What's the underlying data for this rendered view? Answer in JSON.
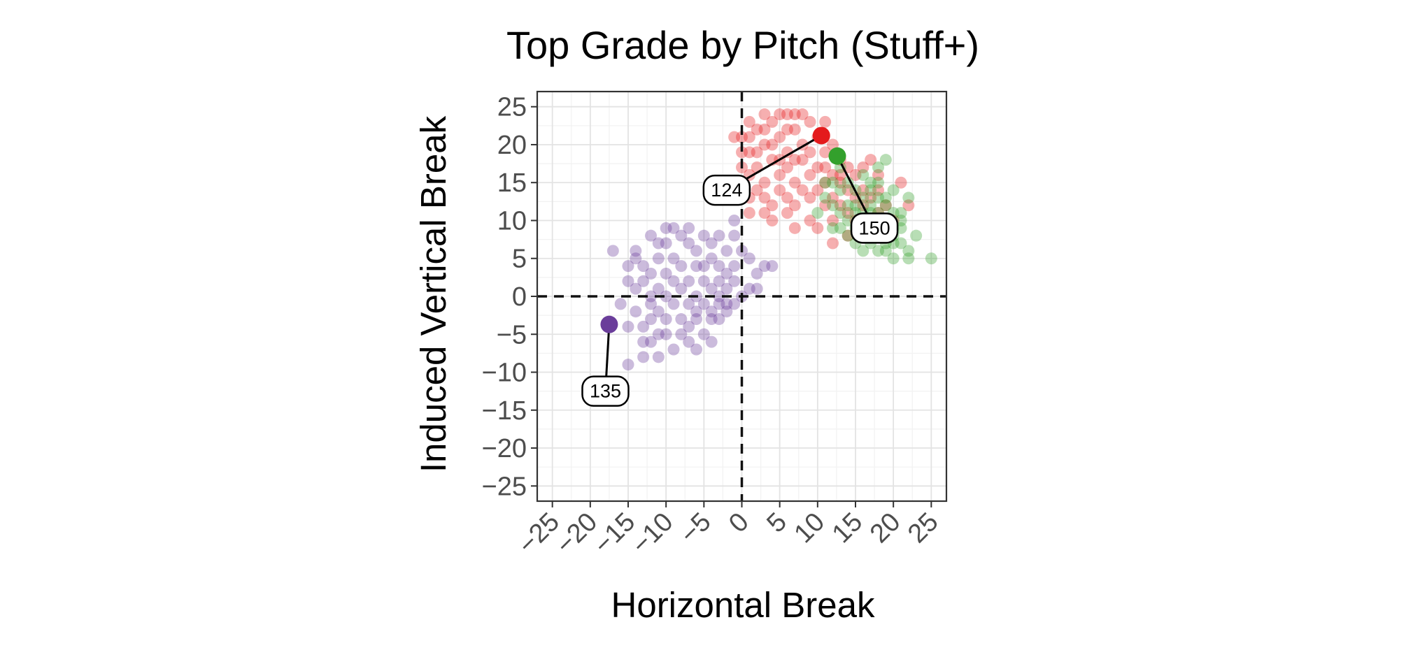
{
  "chart_data": {
    "type": "scatter",
    "title": "Top Grade by Pitch (Stuff+)",
    "xlabel": "Horizontal Break",
    "ylabel": "Induced Vertical Break",
    "xlim": [
      -27,
      27
    ],
    "ylim": [
      -27,
      27
    ],
    "x_ticks": [
      -25,
      -20,
      -15,
      -10,
      -5,
      0,
      5,
      10,
      15,
      20,
      25
    ],
    "y_ticks": [
      -25,
      -20,
      -15,
      -10,
      -5,
      0,
      5,
      10,
      15,
      20,
      25
    ],
    "x_tick_labels": [
      "−25",
      "−20",
      "−15",
      "−10",
      "−5",
      "0",
      "5",
      "10",
      "15",
      "20",
      "25"
    ],
    "y_tick_labels": [
      "−25",
      "−20",
      "−15",
      "−10",
      "−5",
      "0",
      "5",
      "10",
      "15",
      "20",
      "25"
    ],
    "grid": true,
    "reference_lines": {
      "x": 0,
      "y": 0,
      "style": "dashed"
    },
    "series": [
      {
        "color": "#6a3d9a",
        "points": [
          [
            -17,
            6
          ],
          [
            -14,
            5
          ],
          [
            -13,
            4
          ],
          [
            -11,
            7
          ],
          [
            -13,
            2
          ],
          [
            -12,
            0
          ],
          [
            -11,
            1
          ],
          [
            -10,
            3
          ],
          [
            -9,
            5
          ],
          [
            -8,
            8
          ],
          [
            -7,
            7
          ],
          [
            -6,
            6
          ],
          [
            -5,
            8
          ],
          [
            -4,
            5
          ],
          [
            -3,
            4
          ],
          [
            -2,
            3
          ],
          [
            -1,
            4
          ],
          [
            0,
            6
          ],
          [
            -9,
            -1
          ],
          [
            -10,
            -3
          ],
          [
            -11,
            -2
          ],
          [
            -12,
            -1
          ],
          [
            -8,
            -5
          ],
          [
            -7,
            -4
          ],
          [
            -6,
            -3
          ],
          [
            -5,
            -1
          ],
          [
            -4,
            -2
          ],
          [
            -3,
            0
          ],
          [
            -2,
            1
          ],
          [
            -1,
            2
          ],
          [
            1,
            5
          ],
          [
            2,
            3
          ],
          [
            -14,
            -2
          ],
          [
            -13,
            -4
          ],
          [
            -12,
            -6
          ],
          [
            -11,
            -8
          ],
          [
            -10,
            -5
          ],
          [
            -9,
            -7
          ],
          [
            -8,
            -3
          ],
          [
            -7,
            -6
          ],
          [
            -6,
            -2
          ],
          [
            -5,
            -5
          ],
          [
            -4,
            -3
          ],
          [
            -3,
            -1
          ],
          [
            -2,
            -2
          ],
          [
            0,
            0
          ],
          [
            1,
            1
          ],
          [
            -15,
            -4
          ],
          [
            -15,
            -9
          ],
          [
            -16,
            -1
          ],
          [
            -15,
            4
          ],
          [
            -14,
            1
          ],
          [
            -13,
            -6
          ],
          [
            -12,
            3
          ],
          [
            -11,
            5
          ],
          [
            -10,
            7
          ],
          [
            -9,
            2
          ],
          [
            -8,
            1
          ],
          [
            -7,
            2
          ],
          [
            -6,
            0
          ],
          [
            -5,
            2
          ],
          [
            -4,
            1
          ],
          [
            -3,
            2
          ],
          [
            -2,
            -1
          ],
          [
            -1,
            -1
          ],
          [
            -1,
            8
          ],
          [
            -4,
            7
          ],
          [
            -9,
            9
          ],
          [
            -7,
            9
          ],
          [
            -3,
            8
          ],
          [
            -5,
            4
          ],
          [
            -6,
            4
          ],
          [
            -8,
            4
          ],
          [
            -10,
            0
          ],
          [
            -12,
            -3
          ],
          [
            -11,
            -5
          ],
          [
            -7,
            -1
          ],
          [
            -6,
            -7
          ],
          [
            -4,
            -6
          ],
          [
            -3,
            -3
          ],
          [
            -2,
            6
          ],
          [
            -1,
            10
          ],
          [
            2,
            1
          ],
          [
            -13,
            -8
          ],
          [
            -15,
            2
          ],
          [
            -14,
            6
          ],
          [
            -12,
            8
          ],
          [
            -10,
            9
          ],
          [
            3,
            4
          ],
          [
            4,
            4
          ]
        ]
      },
      {
        "color": "#e41a1c",
        "points": [
          [
            0,
            21
          ],
          [
            1,
            19
          ],
          [
            2,
            22
          ],
          [
            3,
            20
          ],
          [
            4,
            23
          ],
          [
            5,
            21
          ],
          [
            6,
            19
          ],
          [
            7,
            22
          ],
          [
            8,
            20
          ],
          [
            9,
            23
          ],
          [
            10,
            21
          ],
          [
            11,
            19
          ],
          [
            12,
            20
          ],
          [
            13,
            18
          ],
          [
            14,
            17
          ],
          [
            2,
            17
          ],
          [
            3,
            15
          ],
          [
            4,
            18
          ],
          [
            5,
            16
          ],
          [
            6,
            17
          ],
          [
            7,
            15
          ],
          [
            8,
            18
          ],
          [
            9,
            16
          ],
          [
            10,
            17
          ],
          [
            11,
            15
          ],
          [
            12,
            16
          ],
          [
            13,
            15
          ],
          [
            14,
            14
          ],
          [
            15,
            13
          ],
          [
            16,
            12
          ],
          [
            1,
            16
          ],
          [
            2,
            14
          ],
          [
            3,
            13
          ],
          [
            4,
            12
          ],
          [
            5,
            14
          ],
          [
            6,
            13
          ],
          [
            7,
            12
          ],
          [
            8,
            14
          ],
          [
            9,
            13
          ],
          [
            10,
            14
          ],
          [
            11,
            12
          ],
          [
            12,
            13
          ],
          [
            13,
            12
          ],
          [
            14,
            11
          ],
          [
            15,
            10
          ],
          [
            1,
            23
          ],
          [
            3,
            24
          ],
          [
            5,
            24
          ],
          [
            7,
            24
          ],
          [
            0,
            17
          ],
          [
            1,
            13
          ],
          [
            17,
            9
          ],
          [
            18,
            14
          ],
          [
            19,
            12
          ],
          [
            21,
            15
          ],
          [
            22,
            12
          ],
          [
            12,
            7
          ],
          [
            10,
            9
          ],
          [
            6,
            11
          ],
          [
            4,
            10
          ],
          [
            -1,
            21
          ],
          [
            0,
            15
          ],
          [
            16,
            17
          ],
          [
            17,
            18
          ],
          [
            18,
            16
          ],
          [
            20,
            10
          ],
          [
            11,
            23
          ],
          [
            8,
            24
          ],
          [
            6,
            22
          ],
          [
            4,
            20
          ],
          [
            2,
            19
          ],
          [
            1,
            21
          ],
          [
            3,
            22
          ],
          [
            5,
            18
          ],
          [
            7,
            18
          ],
          [
            9,
            19
          ],
          [
            11,
            17
          ],
          [
            13,
            16
          ],
          [
            15,
            16
          ],
          [
            16,
            14
          ],
          [
            17,
            13
          ],
          [
            18,
            11
          ],
          [
            14,
            8
          ],
          [
            12,
            10
          ],
          [
            9,
            10
          ],
          [
            7,
            9
          ],
          [
            3,
            11
          ],
          [
            1,
            11
          ],
          [
            0,
            19
          ],
          [
            6,
            24
          ]
        ]
      },
      {
        "color": "#33a02c",
        "points": [
          [
            11,
            13
          ],
          [
            12,
            12
          ],
          [
            13,
            11
          ],
          [
            14,
            10
          ],
          [
            15,
            9
          ],
          [
            16,
            8
          ],
          [
            17,
            7
          ],
          [
            18,
            6
          ],
          [
            19,
            7
          ],
          [
            20,
            8
          ],
          [
            21,
            9
          ],
          [
            22,
            6
          ],
          [
            15,
            14
          ],
          [
            16,
            13
          ],
          [
            17,
            12
          ],
          [
            18,
            11
          ],
          [
            19,
            10
          ],
          [
            20,
            9
          ],
          [
            14,
            15
          ],
          [
            13,
            14
          ],
          [
            12,
            15
          ],
          [
            15,
            11
          ],
          [
            16,
            10
          ],
          [
            17,
            9
          ],
          [
            18,
            8
          ],
          [
            19,
            12
          ],
          [
            20,
            11
          ],
          [
            21,
            10
          ],
          [
            13,
            9
          ],
          [
            14,
            8
          ],
          [
            20,
            5
          ],
          [
            22,
            5
          ],
          [
            25,
            5
          ],
          [
            19,
            13
          ],
          [
            20,
            14
          ],
          [
            17,
            15
          ],
          [
            16,
            16
          ],
          [
            18,
            17
          ],
          [
            13,
            17
          ],
          [
            11,
            15
          ],
          [
            10,
            11
          ],
          [
            12,
            9
          ],
          [
            14,
            12
          ],
          [
            15,
            12
          ],
          [
            16,
            11
          ],
          [
            17,
            11
          ],
          [
            18,
            10
          ],
          [
            19,
            9
          ],
          [
            20,
            7
          ],
          [
            21,
            7
          ],
          [
            19,
            18
          ],
          [
            18,
            15
          ],
          [
            17,
            14
          ],
          [
            21,
            11
          ],
          [
            22,
            13
          ],
          [
            15,
            7
          ],
          [
            16,
            6
          ],
          [
            23,
            8
          ],
          [
            19,
            6
          ],
          [
            18,
            13
          ]
        ]
      }
    ],
    "highlighted_points": [
      {
        "x": -17.5,
        "y": -3.7,
        "color": "#6a3d9a",
        "label": "135",
        "label_x": -18,
        "label_y": -12.5
      },
      {
        "x": 10.5,
        "y": 21.2,
        "color": "#e41a1c",
        "label": "124",
        "label_x": -2,
        "label_y": 14
      },
      {
        "x": 12.6,
        "y": 18.5,
        "color": "#33a02c",
        "label": "150",
        "label_x": 17.5,
        "label_y": 9
      }
    ]
  }
}
